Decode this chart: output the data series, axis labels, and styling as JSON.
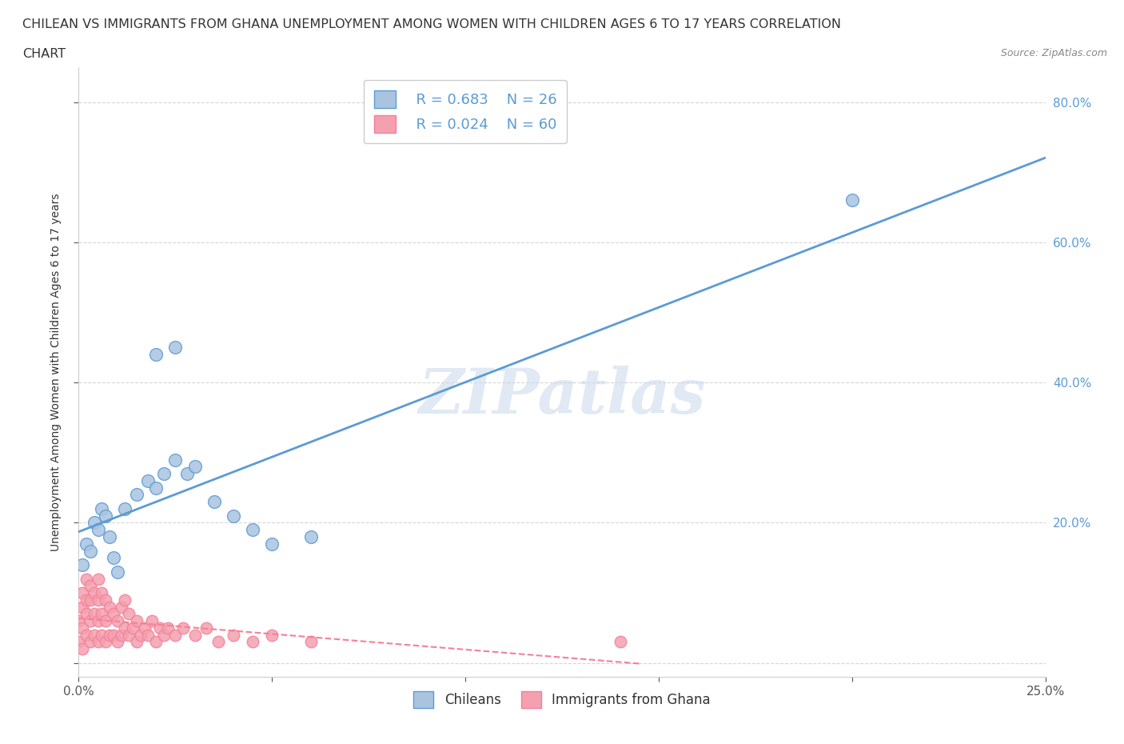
{
  "title_line1": "CHILEAN VS IMMIGRANTS FROM GHANA UNEMPLOYMENT AMONG WOMEN WITH CHILDREN AGES 6 TO 17 YEARS CORRELATION",
  "title_line2": "CHART",
  "source": "Source: ZipAtlas.com",
  "ylabel": "Unemployment Among Women with Children Ages 6 to 17 years",
  "xlim": [
    0.0,
    0.25
  ],
  "ylim": [
    -0.02,
    0.85
  ],
  "xticks": [
    0.0,
    0.05,
    0.1,
    0.15,
    0.2,
    0.25
  ],
  "xtick_labels": [
    "0.0%",
    "",
    "",
    "",
    "",
    "25.0%"
  ],
  "yticks": [
    0.0,
    0.2,
    0.4,
    0.6,
    0.8
  ],
  "ytick_labels": [
    "",
    "20.0%",
    "40.0%",
    "60.0%",
    "80.0%"
  ],
  "watermark": "ZIPatlas",
  "chilean_color": "#aac4e0",
  "ghana_color": "#f4a0b0",
  "chilean_line_color": "#5b9bd5",
  "ghana_line_color": "#f48098",
  "legend_R_chilean": "R = 0.683",
  "legend_N_chilean": "N = 26",
  "legend_R_ghana": "R = 0.024",
  "legend_N_ghana": "N = 60",
  "background_color": "#ffffff",
  "grid_color": "#cccccc"
}
